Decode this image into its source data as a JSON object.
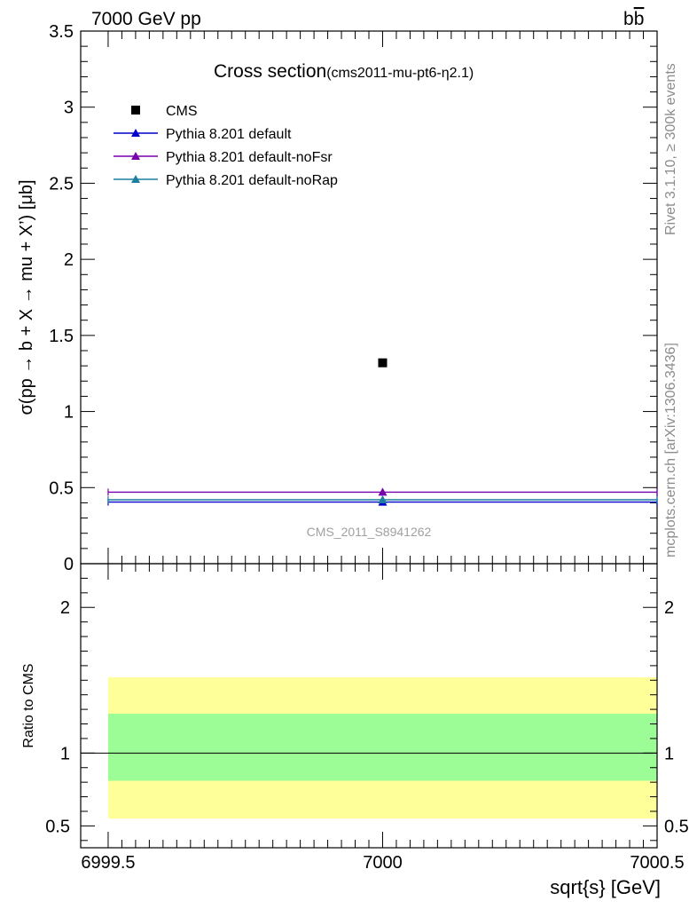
{
  "header": {
    "energy_label": "7000 GeV pp",
    "process_b": "b",
    "process_bbar": "b"
  },
  "side_labels": {
    "rivet": "Rivet 3.1.10, ≥ 300k events",
    "mcplots": "mcplots.cern.ch [arXiv:1306.3436]"
  },
  "main_plot": {
    "title": "Cross section",
    "subtitle": "(cms2011-mu-pt6-η2.1)",
    "ylabel": "σ(pp → b + X → mu + X’) [μb]",
    "watermark": "CMS_2011_S8941262",
    "yticks": [
      "0",
      "0.5",
      "1",
      "1.5",
      "2",
      "2.5",
      "3",
      "3.5"
    ]
  },
  "ratio_plot": {
    "ylabel": "Ratio to CMS",
    "yticks": [
      "0.5",
      "1",
      "2"
    ],
    "xticks": [
      "6999.5",
      "7000",
      "7000.5"
    ],
    "xlabel": "sqrt{s} [GeV]"
  },
  "legend": [
    {
      "label": "CMS",
      "color": "#000000",
      "marker": "square"
    },
    {
      "label": "Pythia 8.201 default",
      "color": "#0000cc",
      "marker": "triangle"
    },
    {
      "label": "Pythia 8.201 default-noFsr",
      "color": "#7700aa",
      "marker": "triangle"
    },
    {
      "label": "Pythia 8.201 default-noRap",
      "color": "#1b7fa0",
      "marker": "triangle"
    }
  ],
  "chart_data": {
    "type": "scatter",
    "title": "Cross section",
    "xlabel": "sqrt{s} [GeV]",
    "ylabel": "σ(pp → b + X → mu + X’) [μb]",
    "xlim": [
      6999.45,
      7000.5
    ],
    "ylim": [
      0,
      3.5
    ],
    "ratio_ylim": [
      0.35,
      2.3
    ],
    "x_bin": [
      6999.5,
      7000.5
    ],
    "series": [
      {
        "name": "CMS",
        "x": 7000,
        "y": 1.32,
        "color": "#000000"
      },
      {
        "name": "Pythia 8.201 default",
        "x": 7000,
        "y": 0.405,
        "color": "#0000cc"
      },
      {
        "name": "Pythia 8.201 default-noFsr",
        "x": 7000,
        "y": 0.47,
        "color": "#7700aa"
      },
      {
        "name": "Pythia 8.201 default-noRap",
        "x": 7000,
        "y": 0.42,
        "color": "#1b7fa0"
      }
    ],
    "ratio_bands": {
      "inner": [
        0.81,
        1.27
      ],
      "outer": [
        0.55,
        1.52
      ],
      "inner_color": "#9cfd96",
      "outer_color": "#ffff99"
    },
    "ratio_reference": 1
  }
}
